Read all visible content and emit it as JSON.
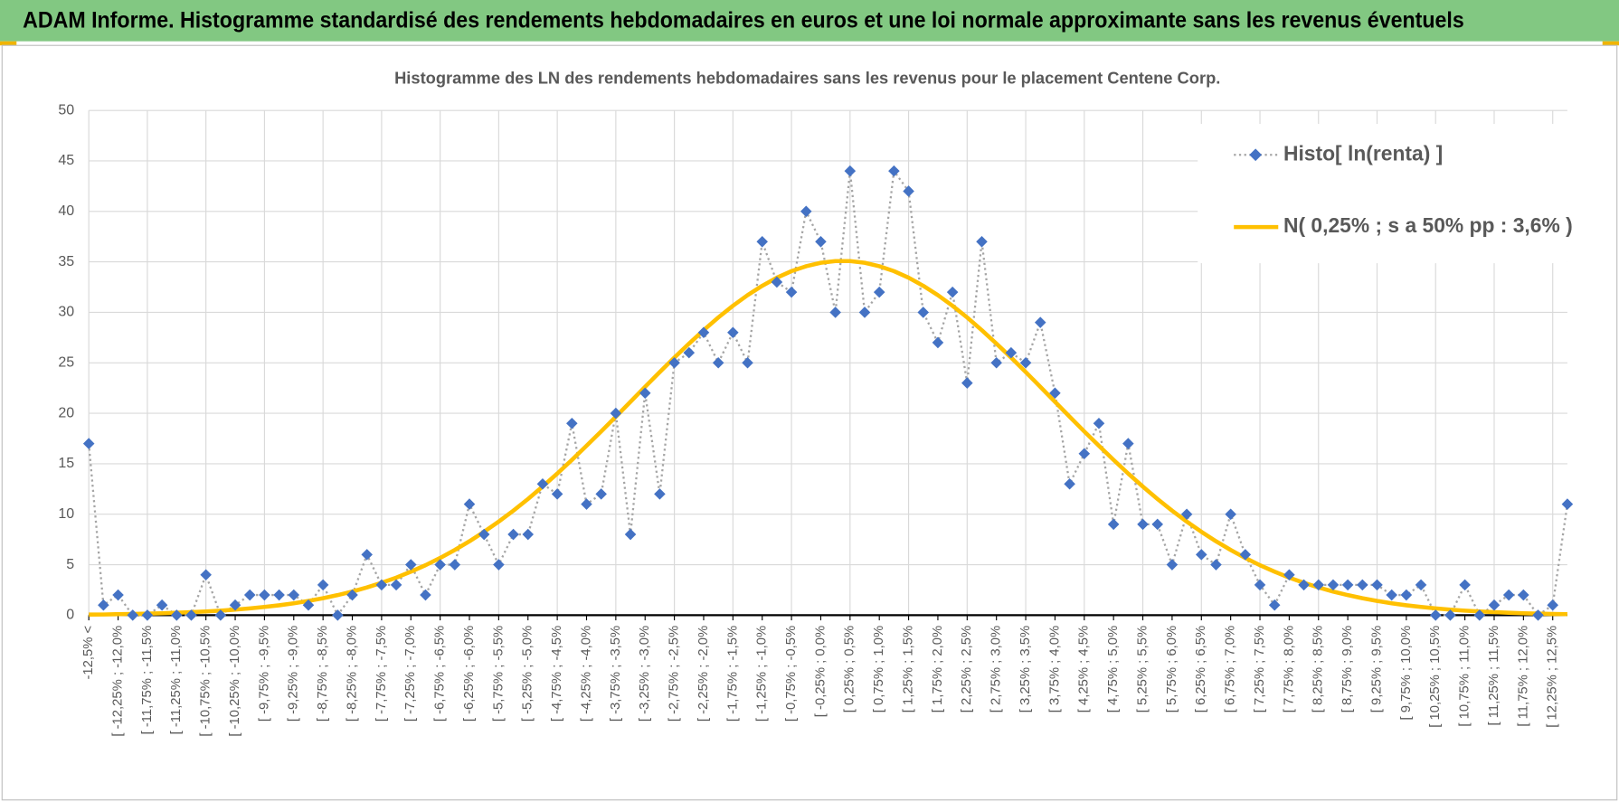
{
  "header": {
    "title": "ADAM Informe. Histogramme standardisé des rendements hebdomadaires en euros et une loi normale approximante sans les revenus éventuels"
  },
  "chart_data": {
    "type": "line",
    "title": "Histogramme  des LN des rendements hebdomadaires sans les revenus pour le placement Centene Corp.",
    "categories": [
      "-12,5% <",
      null,
      "[ -12,25% ; -12,0%",
      null,
      "[ -11,75% ; -11,5%",
      null,
      "[ -11,25% ; -11,0%",
      null,
      "[ -10,75% ; -10,5%",
      null,
      "[ -10,25% ; -10,0%",
      null,
      "[ -9,75% ; -9,5%",
      null,
      "[ -9,25% ; -9,0%",
      null,
      "[ -8,75% ; -8,5%",
      null,
      "[ -8,25% ; -8,0%",
      null,
      "[ -7,75% ; -7,5%",
      null,
      "[ -7,25% ; -7,0%",
      null,
      "[ -6,75% ; -6,5%",
      null,
      "[ -6,25% ; -6,0%",
      null,
      "[ -5,75% ; -5,5%",
      null,
      "[ -5,25% ; -5,0%",
      null,
      "[ -4,75% ; -4,5%",
      null,
      "[ -4,25% ; -4,0%",
      null,
      "[ -3,75% ; -3,5%",
      null,
      "[ -3,25% ; -3,0%",
      null,
      "[ -2,75% ; -2,5%",
      null,
      "[ -2,25% ; -2,0%",
      null,
      "[ -1,75% ; -1,5%",
      null,
      "[ -1,25% ; -1,0%",
      null,
      "[ -0,75% ; -0,5%",
      null,
      "[ -0,25% ; 0,0%",
      null,
      "[ 0,25% ; 0,5%",
      null,
      "[ 0,75% ; 1,0%",
      null,
      "[ 1,25% ; 1,5%",
      null,
      "[ 1,75% ; 2,0%",
      null,
      "[ 2,25% ; 2,5%",
      null,
      "[ 2,75% ; 3,0%",
      null,
      "[ 3,25% ; 3,5%",
      null,
      "[ 3,75% ; 4,0%",
      null,
      "[ 4,25% ; 4,5%",
      null,
      "[ 4,75% ; 5,0%",
      null,
      "[ 5,25% ; 5,5%",
      null,
      "[ 5,75% ; 6,0%",
      null,
      "[ 6,25% ; 6,5%",
      null,
      "[ 6,75% ; 7,0%",
      null,
      "[ 7,25% ; 7,5%",
      null,
      "[ 7,75% ; 8,0%",
      null,
      "[ 8,25% ; 8,5%",
      null,
      "[ 8,75% ; 9,0%",
      null,
      "[ 9,25% ; 9,5%",
      null,
      "[ 9,75% ; 10,0%",
      null,
      "[ 10,25% ; 10,5%",
      null,
      "[ 10,75% ; 11,0%",
      null,
      "[ 11,25% ; 11,5%",
      null,
      "[ 11,75% ; 12,0%",
      null,
      "[ 12,25% ; 12,5%",
      null
    ],
    "series": [
      {
        "name": "Histo[ ln(renta) ]",
        "color": "#4472c4",
        "line_color": "#a5a5a5",
        "values": [
          17,
          1,
          2,
          0,
          0,
          1,
          0,
          0,
          4,
          0,
          1,
          2,
          2,
          2,
          2,
          1,
          3,
          0,
          2,
          6,
          3,
          3,
          5,
          2,
          5,
          5,
          11,
          8,
          5,
          8,
          8,
          13,
          12,
          19,
          11,
          12,
          20,
          8,
          22,
          12,
          25,
          26,
          28,
          25,
          28,
          25,
          37,
          33,
          32,
          40,
          37,
          30,
          44,
          30,
          32,
          44,
          42,
          30,
          27,
          32,
          23,
          37,
          25,
          26,
          25,
          29,
          22,
          13,
          16,
          19,
          9,
          17,
          9,
          9,
          5,
          10,
          6,
          5,
          10,
          6,
          3,
          1,
          4,
          3,
          3,
          3,
          3,
          3,
          3,
          2,
          2,
          3,
          0,
          0,
          3,
          0,
          1,
          2,
          2,
          0,
          1,
          11
        ]
      },
      {
        "name": "N( 0,25% ; s a 50% pp : 3,6% )",
        "color": "#ffc000",
        "values": [
          0.06,
          0.07,
          0.1,
          0.12,
          0.15,
          0.19,
          0.24,
          0.3,
          0.37,
          0.45,
          0.55,
          0.67,
          0.82,
          0.98,
          1.18,
          1.41,
          1.68,
          1.99,
          2.34,
          2.75,
          3.21,
          3.72,
          4.31,
          4.95,
          5.67,
          6.46,
          7.32,
          8.26,
          9.27,
          10.35,
          11.51,
          12.74,
          14.03,
          15.38,
          16.78,
          18.2,
          19.66,
          21.14,
          22.62,
          24.08,
          25.52,
          26.9,
          28.23,
          29.49,
          30.65,
          31.7,
          32.63,
          33.43,
          34.08,
          34.57,
          34.91,
          35.08,
          35.08,
          34.91,
          34.57,
          34.08,
          33.43,
          32.63,
          31.7,
          30.65,
          29.49,
          28.23,
          26.9,
          25.52,
          24.08,
          22.62,
          21.14,
          19.66,
          18.2,
          16.78,
          15.38,
          14.03,
          12.74,
          11.51,
          10.35,
          9.27,
          8.26,
          7.32,
          6.46,
          5.67,
          4.95,
          4.31,
          3.72,
          3.21,
          2.75,
          2.34,
          1.99,
          1.68,
          1.41,
          1.18,
          0.98,
          0.82,
          0.67,
          0.55,
          0.45,
          0.37,
          0.3,
          0.24,
          0.19,
          0.15,
          0.12,
          0.1
        ]
      }
    ],
    "ylim": [
      0,
      50
    ],
    "yticks": [
      0,
      5,
      10,
      15,
      20,
      25,
      30,
      35,
      40,
      45,
      50
    ],
    "grid": true,
    "legend": "upper right"
  }
}
